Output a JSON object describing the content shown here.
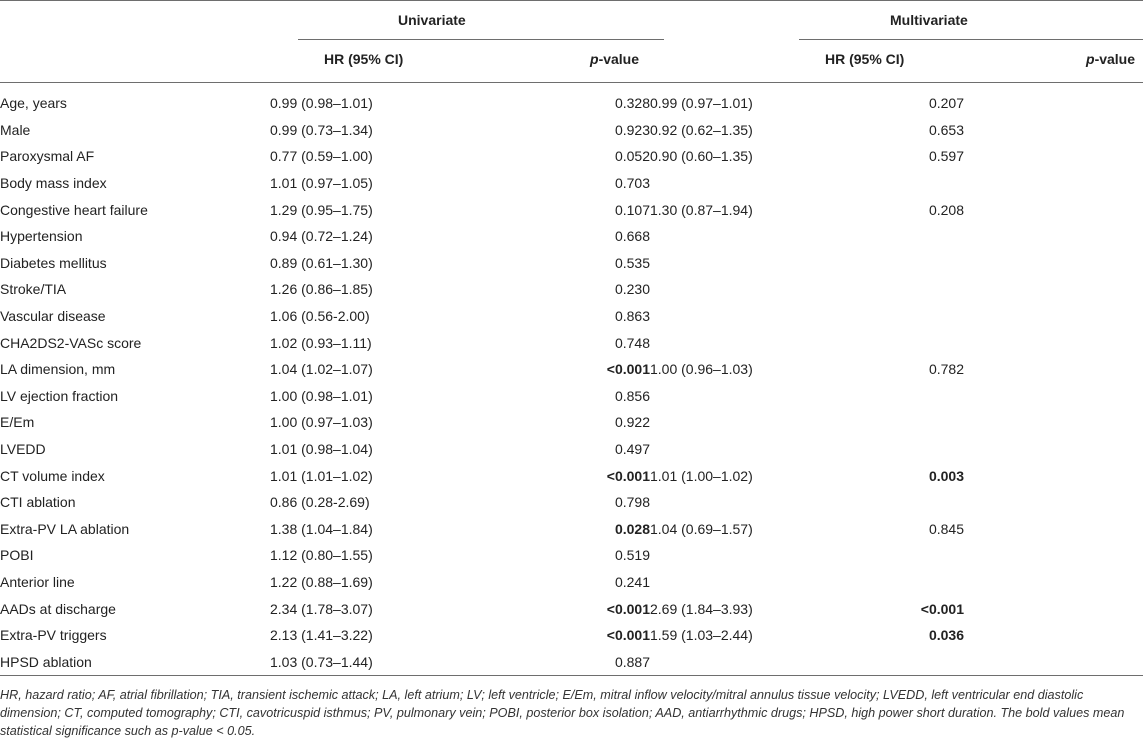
{
  "header": {
    "univariate": "Univariate",
    "multivariate": "Multivariate",
    "hr": "HR (95% CI)",
    "p_italic": "p",
    "p_rest": "-value"
  },
  "rows": [
    {
      "var": "Age, years",
      "uhr": "0.99 (0.98–1.01)",
      "up": "0.328",
      "mhr": "0.99 (0.97–1.01)",
      "mp": "0.207"
    },
    {
      "var": "Male",
      "uhr": "0.99 (0.73–1.34)",
      "up": "0.923",
      "mhr": "0.92 (0.62–1.35)",
      "mp": "0.653"
    },
    {
      "var": "Paroxysmal AF",
      "uhr": "0.77 (0.59–1.00)",
      "up": "0.052",
      "mhr": "0.90 (0.60–1.35)",
      "mp": "0.597"
    },
    {
      "var": "Body mass index",
      "uhr": "1.01 (0.97–1.05)",
      "up": "0.703",
      "mhr": "",
      "mp": ""
    },
    {
      "var": "Congestive heart failure",
      "uhr": "1.29 (0.95–1.75)",
      "up": "0.107",
      "mhr": "1.30 (0.87–1.94)",
      "mp": "0.208"
    },
    {
      "var": "Hypertension",
      "uhr": "0.94 (0.72–1.24)",
      "up": "0.668",
      "mhr": "",
      "mp": ""
    },
    {
      "var": "Diabetes mellitus",
      "uhr": "0.89 (0.61–1.30)",
      "up": "0.535",
      "mhr": "",
      "mp": ""
    },
    {
      "var": "Stroke/TIA",
      "uhr": "1.26 (0.86–1.85)",
      "up": "0.230",
      "mhr": "",
      "mp": ""
    },
    {
      "var": "Vascular disease",
      "uhr": "1.06 (0.56-2.00)",
      "up": "0.863",
      "mhr": "",
      "mp": ""
    },
    {
      "var": "CHA2DS2-VASc score",
      "uhr": "1.02 (0.93–1.11)",
      "up": "0.748",
      "mhr": "",
      "mp": ""
    },
    {
      "var": "LA dimension, mm",
      "uhr": "1.04 (1.02–1.07)",
      "up": "<0.001",
      "mhr": "1.00 (0.96–1.03)",
      "mp": "0.782"
    },
    {
      "var": "LV ejection fraction",
      "uhr": "1.00 (0.98–1.01)",
      "up": "0.856",
      "mhr": "",
      "mp": ""
    },
    {
      "var": "E/Em",
      "uhr": "1.00 (0.97–1.03)",
      "up": "0.922",
      "mhr": "",
      "mp": ""
    },
    {
      "var": "LVEDD",
      "uhr": "1.01 (0.98–1.04)",
      "up": "0.497",
      "mhr": "",
      "mp": ""
    },
    {
      "var": "CT volume index",
      "uhr": "1.01 (1.01–1.02)",
      "up": "<0.001",
      "mhr": "1.01 (1.00–1.02)",
      "mp": "0.003"
    },
    {
      "var": "CTI ablation",
      "uhr": "0.86 (0.28-2.69)",
      "up": "0.798",
      "mhr": "",
      "mp": ""
    },
    {
      "var": "Extra-PV LA ablation",
      "uhr": "1.38 (1.04–1.84)",
      "up": "0.028",
      "mhr": "1.04 (0.69–1.57)",
      "mp": "0.845"
    },
    {
      "var": "POBI",
      "uhr": "1.12 (0.80–1.55)",
      "up": "0.519",
      "mhr": "",
      "mp": ""
    },
    {
      "var": "Anterior line",
      "uhr": "1.22 (0.88–1.69)",
      "up": "0.241",
      "mhr": "",
      "mp": ""
    },
    {
      "var": "AADs at discharge",
      "uhr": "2.34 (1.78–3.07)",
      "up": "<0.001",
      "mhr": "2.69 (1.84–3.93)",
      "mp": "<0.001"
    },
    {
      "var": "Extra-PV triggers",
      "uhr": "2.13 (1.41–3.22)",
      "up": "<0.001",
      "mhr": "1.59 (1.03–2.44)",
      "mp": "0.036"
    },
    {
      "var": "HPSD ablation",
      "uhr": "1.03 (0.73–1.44)",
      "up": "0.887",
      "mhr": "",
      "mp": ""
    }
  ],
  "bold_cells": [
    "10.up",
    "14.up",
    "14.mp",
    "16.up",
    "19.up",
    "19.mp",
    "20.up",
    "20.mp"
  ],
  "footnote": "HR, hazard ratio; AF, atrial fibrillation; TIA, transient ischemic attack; LA, left atrium; LV; left ventricle; E/Em, mitral inflow velocity/mitral annulus tissue velocity; LVEDD, left ventricular end diastolic dimension; CT, computed tomography; CTI, cavotricuspid isthmus; PV, pulmonary vein; POBI, posterior box isolation; AAD, antiarrhythmic drugs; HPSD, high power short duration. The bold values mean statistical significance such as p-value < 0.05."
}
